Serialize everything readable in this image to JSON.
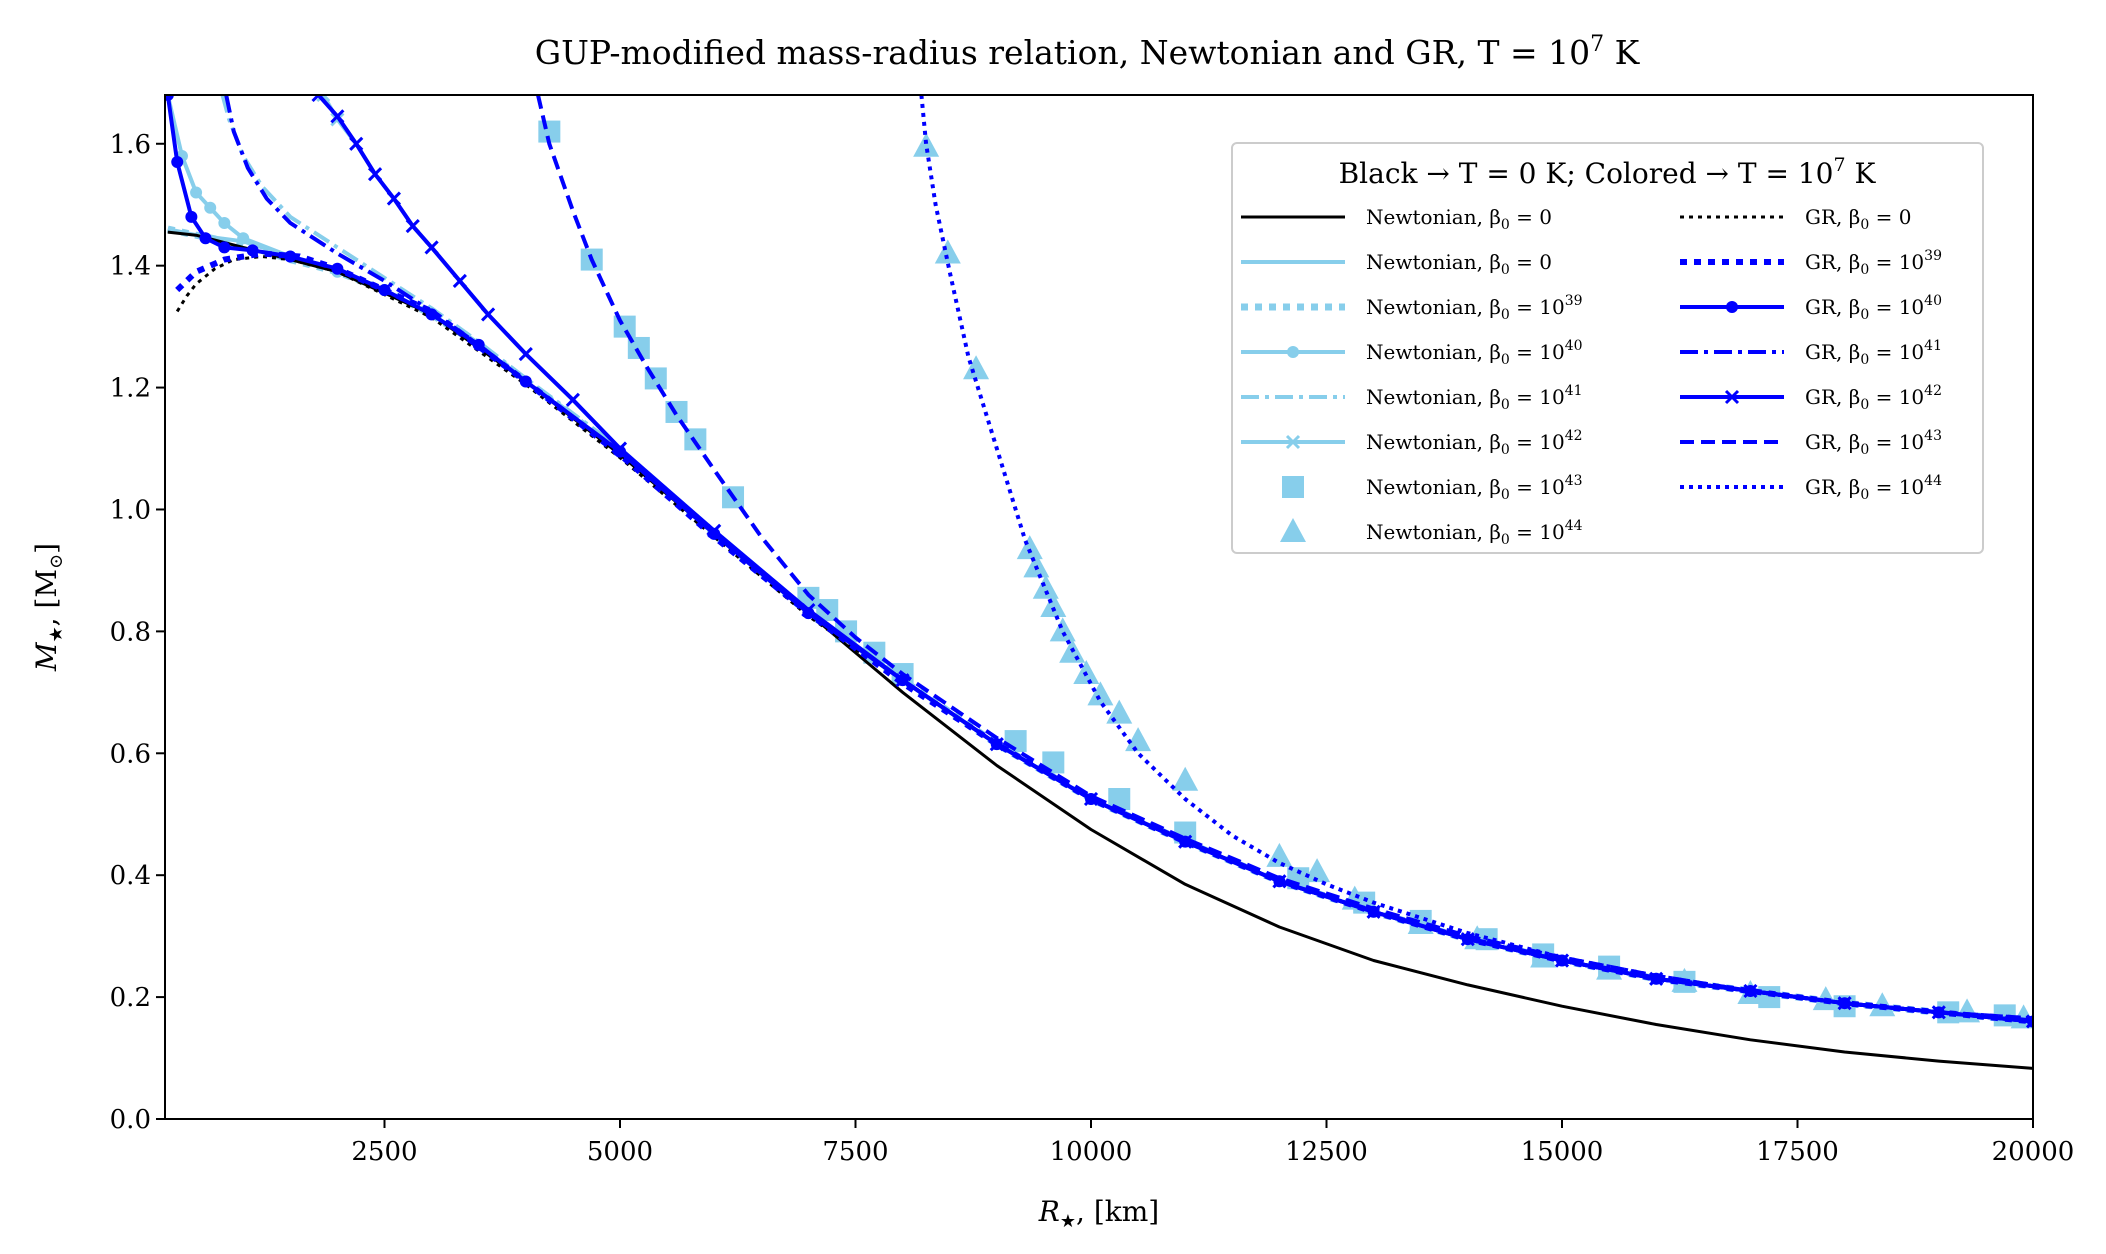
{
  "chart_data": {
    "type": "line",
    "title": "GUP-modified mass-radius relation, Newtonian and GR, T = 10",
    "title_sup": "7",
    "title_end": " K",
    "xlabel": "R",
    "xlabel_sub": "★",
    "xlabel_unit": ", [km]",
    "ylabel": "M",
    "ylabel_sub": "★",
    "ylabel_unit": ", [M",
    "ylabel_unit_sub": "⊙",
    "ylabel_end": "]",
    "xlim": [
      170,
      20000
    ],
    "ylim": [
      0.0,
      1.68
    ],
    "xticks": [
      2500,
      5000,
      7500,
      10000,
      12500,
      15000,
      17500,
      20000
    ],
    "yticks": [
      0.0,
      0.2,
      0.4,
      0.6,
      0.8,
      1.0,
      1.2,
      1.4,
      1.6
    ],
    "colors": {
      "black": "#000000",
      "light": "#87ceeb",
      "blue": "#0000ff"
    },
    "legend": {
      "title": "Black → T = 0 K; Colored → T = 10",
      "title_sup": "7",
      "title_end": " K",
      "placement": "top-right",
      "left_column": [
        {
          "label": "Newtonian, β",
          "sub": "0",
          "tail": " = 0",
          "sup": "",
          "key": "newt_T0"
        },
        {
          "label": "Newtonian, β",
          "sub": "0",
          "tail": " = 0",
          "sup": "",
          "key": "newt_b0"
        },
        {
          "label": "Newtonian, β",
          "sub": "0",
          "tail": " = 10",
          "sup": "39",
          "key": "newt_b39"
        },
        {
          "label": "Newtonian, β",
          "sub": "0",
          "tail": " = 10",
          "sup": "40",
          "key": "newt_b40"
        },
        {
          "label": "Newtonian, β",
          "sub": "0",
          "tail": " = 10",
          "sup": "41",
          "key": "newt_b41"
        },
        {
          "label": "Newtonian, β",
          "sub": "0",
          "tail": " = 10",
          "sup": "42",
          "key": "newt_b42"
        },
        {
          "label": "Newtonian, β",
          "sub": "0",
          "tail": " = 10",
          "sup": "43",
          "key": "newt_b43"
        },
        {
          "label": "Newtonian, β",
          "sub": "0",
          "tail": " = 10",
          "sup": "44",
          "key": "newt_b44"
        }
      ],
      "right_column": [
        {
          "label": "GR, β",
          "sub": "0",
          "tail": " = 0",
          "sup": "",
          "key": "gr_T0"
        },
        {
          "label": "GR, β",
          "sub": "0",
          "tail": " = 10",
          "sup": "39",
          "key": "gr_b39"
        },
        {
          "label": "GR, β",
          "sub": "0",
          "tail": " = 10",
          "sup": "40",
          "key": "gr_b40"
        },
        {
          "label": "GR, β",
          "sub": "0",
          "tail": " = 10",
          "sup": "41",
          "key": "gr_b41"
        },
        {
          "label": "GR, β",
          "sub": "0",
          "tail": " = 10",
          "sup": "42",
          "key": "gr_b42"
        },
        {
          "label": "GR, β",
          "sub": "0",
          "tail": " = 10",
          "sup": "43",
          "key": "gr_b43"
        },
        {
          "label": "GR, β",
          "sub": "0",
          "tail": " = 10",
          "sup": "44",
          "key": "gr_b44"
        }
      ]
    },
    "series": [
      {
        "key": "newt_T0",
        "name": "Newtonian, β0 = 0 (T = 0 K)",
        "color": "#000000",
        "style": "solid",
        "marker": "none",
        "width": 3,
        "x": [
          200,
          500,
          1000,
          2000,
          3000,
          4000,
          5000,
          6000,
          7000,
          8000,
          9000,
          10000,
          11000,
          12000,
          13000,
          14000,
          15000,
          16000,
          17000,
          18000,
          19000,
          20000
        ],
        "y": [
          1.455,
          1.45,
          1.43,
          1.39,
          1.32,
          1.21,
          1.09,
          0.96,
          0.83,
          0.7,
          0.58,
          0.475,
          0.385,
          0.315,
          0.26,
          0.22,
          0.185,
          0.155,
          0.13,
          0.11,
          0.095,
          0.083
        ]
      },
      {
        "key": "gr_T0",
        "name": "GR, β0 = 0 (T = 0 K)",
        "color": "#000000",
        "style": "dotted",
        "marker": "none",
        "width": 3,
        "x": [
          300,
          400,
          500,
          700,
          900,
          1200,
          1500,
          2000,
          3000,
          4000,
          5000,
          6000,
          7000,
          7600
        ],
        "y": [
          1.325,
          1.35,
          1.37,
          1.395,
          1.41,
          1.415,
          1.41,
          1.39,
          1.315,
          1.205,
          1.085,
          0.955,
          0.825,
          0.76
        ]
      },
      {
        "key": "newt_b0",
        "name": "Newtonian, β0 = 0",
        "color": "#87ceeb",
        "style": "solid",
        "marker": "none",
        "width": 4,
        "x": [
          200,
          500,
          1000,
          1500,
          2000,
          2500,
          3000,
          3500,
          4000,
          5000,
          6000,
          7000,
          8000,
          9000,
          10000,
          11000,
          12000,
          13000,
          14000,
          15000,
          16000,
          17000,
          18000,
          19000,
          20000
        ],
        "y": [
          1.46,
          1.45,
          1.44,
          1.415,
          1.39,
          1.36,
          1.32,
          1.27,
          1.21,
          1.095,
          0.96,
          0.83,
          0.72,
          0.615,
          0.525,
          0.455,
          0.39,
          0.34,
          0.295,
          0.26,
          0.23,
          0.21,
          0.19,
          0.175,
          0.16
        ]
      },
      {
        "key": "newt_b39",
        "name": "Newtonian, β0 = 10^39",
        "color": "#87ceeb",
        "style": "dotted-thick",
        "marker": "none",
        "width": 7,
        "x": [
          200,
          500,
          1000,
          1500,
          2000,
          2500,
          3000,
          3500,
          4000,
          5000,
          6000,
          7000,
          8000,
          9000,
          10000,
          11000,
          12000,
          13000,
          14000,
          15000,
          16000,
          17000,
          18000,
          19000,
          20000
        ],
        "y": [
          1.46,
          1.45,
          1.435,
          1.41,
          1.39,
          1.36,
          1.32,
          1.27,
          1.21,
          1.095,
          0.96,
          0.83,
          0.72,
          0.615,
          0.525,
          0.455,
          0.39,
          0.34,
          0.295,
          0.26,
          0.23,
          0.21,
          0.19,
          0.175,
          0.16
        ]
      },
      {
        "key": "newt_b40",
        "name": "Newtonian, β0 = 10^40",
        "color": "#87ceeb",
        "style": "solid",
        "marker": "circle",
        "width": 4,
        "x": [
          200,
          350,
          500,
          650,
          800,
          1000,
          1500,
          2000,
          2500,
          3000,
          3500,
          4000,
          5000,
          6000,
          7000,
          8000,
          9000,
          10000,
          11000,
          12000,
          13000,
          14000,
          15000,
          16000,
          17000,
          18000,
          19000,
          20000
        ],
        "y": [
          1.68,
          1.58,
          1.52,
          1.495,
          1.47,
          1.445,
          1.415,
          1.39,
          1.36,
          1.32,
          1.27,
          1.21,
          1.095,
          0.96,
          0.83,
          0.72,
          0.615,
          0.525,
          0.455,
          0.39,
          0.34,
          0.295,
          0.26,
          0.23,
          0.21,
          0.19,
          0.175,
          0.16
        ]
      },
      {
        "key": "newt_b41",
        "name": "Newtonian, β0 = 10^41",
        "color": "#87ceeb",
        "style": "dashdot",
        "marker": "none",
        "width": 4,
        "x": [
          780,
          850,
          1000,
          1200,
          1500,
          2000,
          2500,
          3000,
          3500,
          4000,
          5000,
          6000,
          7000,
          8000,
          9000,
          10000,
          11000,
          12000,
          13000,
          14000,
          15000,
          16000,
          17000,
          18000,
          19000,
          20000
        ],
        "y": [
          1.68,
          1.64,
          1.58,
          1.53,
          1.48,
          1.43,
          1.38,
          1.33,
          1.275,
          1.215,
          1.1,
          0.965,
          0.835,
          0.72,
          0.615,
          0.525,
          0.455,
          0.39,
          0.34,
          0.295,
          0.26,
          0.23,
          0.21,
          0.19,
          0.175,
          0.16
        ]
      },
      {
        "key": "newt_b42",
        "name": "Newtonian, β0 = 10^42",
        "color": "#87ceeb",
        "style": "solid",
        "marker": "x",
        "width": 4,
        "x": [
          1850,
          2000,
          2200,
          2400,
          2600,
          2800,
          3000,
          3300,
          3600,
          4000,
          4500,
          5000,
          6000,
          7000,
          8000,
          9000,
          10000,
          11000,
          12000,
          13000,
          14000,
          15000,
          16000,
          17000,
          18000,
          19000,
          20000
        ],
        "y": [
          1.68,
          1.64,
          1.6,
          1.55,
          1.51,
          1.465,
          1.43,
          1.375,
          1.32,
          1.255,
          1.18,
          1.1,
          0.965,
          0.835,
          0.72,
          0.615,
          0.525,
          0.455,
          0.39,
          0.34,
          0.295,
          0.26,
          0.23,
          0.21,
          0.19,
          0.175,
          0.16
        ]
      },
      {
        "key": "newt_b43",
        "name": "Newtonian, β0 = 10^43",
        "color": "#87ceeb",
        "style": "none",
        "marker": "square",
        "width": 0,
        "x": [
          4250,
          4700,
          5050,
          5200,
          5380,
          5600,
          5800,
          6200,
          7000,
          7200,
          7400,
          7700,
          8000,
          9200,
          9600,
          10300,
          11000,
          12200,
          12900,
          13500,
          14200,
          14800,
          15500,
          16300,
          17200,
          18000,
          19100,
          19700
        ],
        "y": [
          1.62,
          1.41,
          1.3,
          1.265,
          1.215,
          1.16,
          1.115,
          1.02,
          0.855,
          0.835,
          0.8,
          0.765,
          0.73,
          0.62,
          0.585,
          0.525,
          0.47,
          0.395,
          0.355,
          0.325,
          0.295,
          0.27,
          0.25,
          0.225,
          0.2,
          0.185,
          0.175,
          0.17
        ]
      },
      {
        "key": "newt_b44",
        "name": "Newtonian, β0 = 10^44",
        "color": "#87ceeb",
        "style": "none",
        "marker": "triangle",
        "width": 0,
        "x": [
          8250,
          8480,
          8780,
          9350,
          9420,
          9520,
          9600,
          9700,
          9800,
          9950,
          10100,
          10300,
          10500,
          11000,
          12000,
          12400,
          12800,
          13500,
          14100,
          14800,
          15500,
          16300,
          17000,
          17800,
          18400,
          19300,
          19900
        ],
        "y": [
          1.595,
          1.42,
          1.23,
          0.935,
          0.905,
          0.87,
          0.84,
          0.8,
          0.765,
          0.73,
          0.695,
          0.665,
          0.62,
          0.555,
          0.43,
          0.405,
          0.36,
          0.32,
          0.295,
          0.265,
          0.245,
          0.225,
          0.205,
          0.195,
          0.185,
          0.175,
          0.165
        ]
      },
      {
        "key": "gr_b39",
        "name": "GR, β0 = 10^39",
        "color": "#0000ff",
        "style": "dotted-thick",
        "marker": "none",
        "width": 6,
        "x": [
          300,
          500,
          800,
          1200,
          1600,
          2000,
          3000,
          4000,
          5000,
          6000,
          7000,
          8000,
          9000,
          10000,
          11000,
          12000,
          13000,
          14000,
          15000,
          16000,
          17000,
          18000,
          19000,
          20000
        ],
        "y": [
          1.36,
          1.39,
          1.41,
          1.42,
          1.415,
          1.395,
          1.325,
          1.21,
          1.09,
          0.955,
          0.83,
          0.715,
          0.615,
          0.525,
          0.455,
          0.39,
          0.34,
          0.295,
          0.26,
          0.23,
          0.21,
          0.19,
          0.175,
          0.16
        ]
      },
      {
        "key": "gr_b40",
        "name": "GR, β0 = 10^40",
        "color": "#0000ff",
        "style": "solid",
        "marker": "circle",
        "width": 4,
        "x": [
          200,
          300,
          450,
          600,
          800,
          1100,
          1500,
          2000,
          2500,
          3000,
          3500,
          4000,
          5000,
          6000,
          7000,
          8000,
          9000,
          10000,
          11000,
          12000,
          13000,
          14000,
          15000,
          16000,
          17000,
          18000,
          19000,
          20000
        ],
        "y": [
          1.68,
          1.57,
          1.48,
          1.445,
          1.43,
          1.425,
          1.415,
          1.395,
          1.36,
          1.32,
          1.27,
          1.21,
          1.095,
          0.96,
          0.83,
          0.72,
          0.615,
          0.525,
          0.455,
          0.39,
          0.34,
          0.295,
          0.26,
          0.23,
          0.21,
          0.19,
          0.175,
          0.16
        ]
      },
      {
        "key": "gr_b41",
        "name": "GR, β0 = 10^41",
        "color": "#0000ff",
        "style": "dashdot",
        "marker": "none",
        "width": 4,
        "x": [
          820,
          900,
          1050,
          1250,
          1500,
          2000,
          2500,
          3000,
          3500,
          4000,
          5000,
          6000,
          7000,
          8000,
          9000,
          10000,
          11000,
          12000,
          13000,
          14000,
          15000,
          16000,
          17000,
          18000,
          19000,
          20000
        ],
        "y": [
          1.68,
          1.62,
          1.56,
          1.51,
          1.47,
          1.42,
          1.375,
          1.325,
          1.27,
          1.21,
          1.095,
          0.96,
          0.83,
          0.72,
          0.615,
          0.525,
          0.455,
          0.39,
          0.34,
          0.295,
          0.26,
          0.23,
          0.21,
          0.19,
          0.175,
          0.16
        ]
      },
      {
        "key": "gr_b42",
        "name": "GR, β0 = 10^42",
        "color": "#0000ff",
        "style": "solid",
        "marker": "x",
        "width": 4,
        "x": [
          1800,
          2000,
          2200,
          2400,
          2600,
          2800,
          3000,
          3300,
          3600,
          4000,
          4500,
          5000,
          6000,
          7000,
          8000,
          9000,
          10000,
          11000,
          12000,
          13000,
          14000,
          15000,
          16000,
          17000,
          18000,
          19000,
          20000
        ],
        "y": [
          1.68,
          1.645,
          1.6,
          1.55,
          1.51,
          1.465,
          1.43,
          1.375,
          1.32,
          1.255,
          1.18,
          1.1,
          0.965,
          0.835,
          0.72,
          0.615,
          0.525,
          0.455,
          0.39,
          0.34,
          0.295,
          0.26,
          0.23,
          0.21,
          0.19,
          0.175,
          0.16
        ]
      },
      {
        "key": "gr_b43",
        "name": "GR, β0 = 10^43",
        "color": "#0000ff",
        "style": "dashed",
        "marker": "none",
        "width": 4,
        "x": [
          4130,
          4250,
          4500,
          4700,
          5000,
          5300,
          5600,
          6000,
          6500,
          7000,
          7500,
          8000,
          9000,
          10000,
          11000,
          12000,
          13000,
          14000,
          15000,
          16000,
          17000,
          18000,
          19000,
          20000
        ],
        "y": [
          1.68,
          1.6,
          1.49,
          1.41,
          1.31,
          1.23,
          1.155,
          1.065,
          0.955,
          0.86,
          0.79,
          0.73,
          0.625,
          0.53,
          0.46,
          0.395,
          0.345,
          0.3,
          0.265,
          0.235,
          0.21,
          0.19,
          0.175,
          0.165
        ]
      },
      {
        "key": "gr_b44",
        "name": "GR, β0 = 10^44",
        "color": "#0000ff",
        "style": "dotted",
        "marker": "none",
        "width": 4,
        "x": [
          8200,
          8250,
          8350,
          8500,
          8700,
          9000,
          9300,
          9700,
          10100,
          10500,
          11000,
          11500,
          12000,
          12500,
          13000,
          14000,
          15000,
          16000,
          17000,
          18000,
          19000,
          20000
        ],
        "y": [
          1.68,
          1.6,
          1.5,
          1.39,
          1.25,
          1.1,
          0.95,
          0.8,
          0.685,
          0.6,
          0.525,
          0.465,
          0.42,
          0.385,
          0.355,
          0.305,
          0.265,
          0.235,
          0.21,
          0.19,
          0.175,
          0.165
        ]
      }
    ]
  }
}
